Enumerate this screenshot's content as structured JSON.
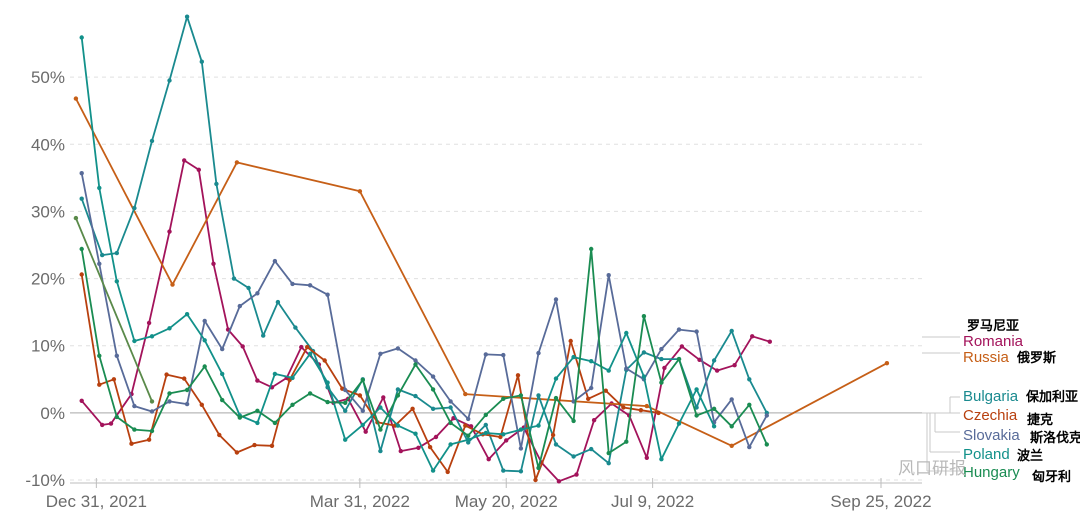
{
  "chart_data": {
    "type": "line",
    "title": "",
    "xlabel": "",
    "ylabel": "",
    "y_unit": "%",
    "ylim": [
      -10,
      60
    ],
    "xlim": [
      "2021-12-22",
      "2022-10-09"
    ],
    "y_ticks": [
      -10,
      0,
      10,
      20,
      30,
      40,
      50
    ],
    "y_tick_labels": [
      "-10%",
      "0%",
      "10%",
      "20%",
      "30%",
      "40%",
      "50%"
    ],
    "x_ticks": [
      "2021-12-31",
      "2022-03-31",
      "2022-05-20",
      "2022-07-09",
      "2022-09-25"
    ],
    "x_tick_labels": [
      "Dec 31, 2021",
      "Mar 31, 2022",
      "May 20, 2022",
      "Jul 9, 2022",
      "Sep 25, 2022"
    ],
    "grid": "horizontal dashed",
    "legend": "right, end-of-line labels",
    "series": [
      {
        "name": "Romania",
        "label_cn": "罗马尼亚",
        "color": "#a3135b",
        "x": [
          "2021-12-26",
          "2022-01-02",
          "2022-01-05",
          "2022-01-12",
          "2022-01-18",
          "2022-01-25",
          "2022-01-30",
          "2022-02-04",
          "2022-02-09",
          "2022-02-14",
          "2022-02-19",
          "2022-02-24",
          "2022-03-01",
          "2022-03-06",
          "2022-03-11",
          "2022-03-17",
          "2022-03-22",
          "2022-03-27",
          "2022-04-02",
          "2022-04-08",
          "2022-04-14",
          "2022-04-20",
          "2022-04-26",
          "2022-05-02",
          "2022-05-08",
          "2022-05-14",
          "2022-05-20",
          "2022-05-26",
          "2022-06-01",
          "2022-06-07",
          "2022-06-13",
          "2022-06-19",
          "2022-06-25",
          "2022-07-01",
          "2022-07-07",
          "2022-07-13",
          "2022-07-19",
          "2022-07-25",
          "2022-07-31",
          "2022-08-06",
          "2022-08-12",
          "2022-08-18",
          "2022-08-24",
          "2022-08-30",
          "2022-09-05",
          "2022-09-11",
          "2022-09-17"
        ],
        "y": [
          1.8,
          -1.8,
          -1.6,
          2.8,
          13.4,
          27.0,
          37.6,
          36.2,
          22.2,
          12.4,
          9.9,
          4.8,
          3.8,
          5.2,
          9.8,
          7.2,
          1.5,
          2.1,
          -2.8,
          2.3,
          -5.7,
          -5.2,
          -3.6,
          -0.8,
          -2.0,
          -6.9,
          -4.1,
          -2.2,
          -7.4,
          -10.2,
          -9.2,
          -1.1,
          1.4,
          -0.4,
          -6.7,
          6.7,
          9.9,
          7.9,
          6.3,
          7.1,
          11.4,
          10.6,
          null,
          null,
          null,
          null,
          null
        ]
      },
      {
        "name": "Russia",
        "label_cn": "俄罗斯",
        "color": "#c65f17",
        "x": [
          "2021-12-24",
          "2022-01-26",
          "2022-02-17",
          "2022-03-31",
          "2022-05-06",
          "2022-07-07",
          "2022-08-05",
          "2022-09-27"
        ],
        "y": [
          46.8,
          19.1,
          37.3,
          33.0,
          2.8,
          1.0,
          -4.9,
          7.4
        ]
      },
      {
        "name": "Bulgaria",
        "label_cn": "保加利亚",
        "color": "#1a8a8f",
        "x": [
          "2021-12-26",
          "2022-01-02",
          "2022-01-07",
          "2022-01-13",
          "2022-01-19",
          "2022-01-25",
          "2022-01-31",
          "2022-02-05",
          "2022-02-10",
          "2022-02-16",
          "2022-02-21",
          "2022-02-26",
          "2022-03-03",
          "2022-03-09",
          "2022-03-15",
          "2022-03-20",
          "2022-03-26",
          "2022-04-01",
          "2022-04-07",
          "2022-04-13",
          "2022-04-19",
          "2022-04-25",
          "2022-05-01",
          "2022-05-07",
          "2022-05-13",
          "2022-05-19",
          "2022-05-25",
          "2022-05-31",
          "2022-06-06",
          "2022-06-12",
          "2022-06-18",
          "2022-06-24",
          "2022-06-30",
          "2022-07-06",
          "2022-07-12",
          "2022-07-18",
          "2022-07-24",
          "2022-07-30",
          "2022-08-05",
          "2022-08-11",
          "2022-08-17",
          "2022-08-23",
          "2022-08-29",
          "2022-09-04",
          "2022-09-10",
          "2022-09-16",
          "2022-09-22"
        ],
        "y": [
          31.9,
          23.5,
          23.8,
          30.5,
          40.5,
          49.5,
          59.0,
          52.3,
          34.1,
          20.0,
          18.6,
          11.5,
          16.5,
          12.7,
          9.2,
          3.8,
          0.3,
          5.0,
          -5.7,
          3.5,
          2.5,
          0.6,
          0.8,
          -4.4,
          -1.8,
          -8.6,
          -8.7,
          2.6,
          -4.7,
          -6.5,
          -5.4,
          -7.5,
          6.4,
          9.0,
          8.0,
          8.0,
          0.8,
          7.8,
          12.2,
          5.0,
          0.0,
          null,
          null,
          null,
          null,
          null,
          null
        ]
      },
      {
        "name": "Czechia",
        "label_cn": "捷克",
        "color": "#b8400f",
        "x": [
          "2021-12-26",
          "2022-01-01",
          "2022-01-06",
          "2022-01-12",
          "2022-01-18",
          "2022-01-24",
          "2022-01-30",
          "2022-02-05",
          "2022-02-11",
          "2022-02-17",
          "2022-02-23",
          "2022-03-01",
          "2022-03-07",
          "2022-03-13",
          "2022-03-19",
          "2022-03-25",
          "2022-03-31",
          "2022-04-06",
          "2022-04-12",
          "2022-04-18",
          "2022-04-24",
          "2022-04-30",
          "2022-05-06",
          "2022-05-12",
          "2022-05-18",
          "2022-05-24",
          "2022-05-30",
          "2022-06-05",
          "2022-06-11",
          "2022-06-17",
          "2022-06-23",
          "2022-06-29",
          "2022-07-05",
          "2022-07-11",
          "2022-07-17",
          "2022-07-23",
          "2022-07-29",
          "2022-08-04",
          "2022-08-10",
          "2022-08-16",
          "2022-08-22"
        ],
        "y": [
          20.6,
          4.2,
          5.0,
          -4.6,
          -4.0,
          5.7,
          5.1,
          1.2,
          -3.3,
          -5.9,
          -4.8,
          -4.9,
          4.9,
          9.8,
          7.8,
          3.6,
          2.6,
          -1.4,
          -1.9,
          0.6,
          -5.1,
          -8.8,
          -1.9,
          -3.2,
          -3.6,
          5.6,
          -10.0,
          -3.3,
          10.7,
          2.1,
          3.3,
          0.8,
          0.4,
          0.0,
          null,
          null,
          null,
          null,
          null,
          null,
          null
        ]
      },
      {
        "name": "Slovakia",
        "label_cn": "斯洛伐克",
        "color": "#586b99",
        "x": [
          "2021-12-26",
          "2022-01-01",
          "2022-01-07",
          "2022-01-13",
          "2022-01-19",
          "2022-01-25",
          "2022-01-31",
          "2022-02-06",
          "2022-02-12",
          "2022-02-18",
          "2022-02-24",
          "2022-03-02",
          "2022-03-08",
          "2022-03-14",
          "2022-03-20",
          "2022-03-26",
          "2022-04-01",
          "2022-04-07",
          "2022-04-13",
          "2022-04-19",
          "2022-04-25",
          "2022-05-01",
          "2022-05-07",
          "2022-05-13",
          "2022-05-19",
          "2022-05-25",
          "2022-05-31",
          "2022-06-06",
          "2022-06-12",
          "2022-06-18",
          "2022-06-24",
          "2022-06-30",
          "2022-07-06",
          "2022-07-12",
          "2022-07-18",
          "2022-07-24",
          "2022-07-30",
          "2022-08-05",
          "2022-08-11",
          "2022-08-17",
          "2022-08-23",
          "2022-08-29",
          "2022-09-04",
          "2022-09-10",
          "2022-09-16",
          "2022-09-22",
          "2022-09-28"
        ],
        "y": [
          35.7,
          22.2,
          8.5,
          1.0,
          0.2,
          1.7,
          1.3,
          13.7,
          9.5,
          15.9,
          17.8,
          22.6,
          19.2,
          19.0,
          17.6,
          3.4,
          0.3,
          8.8,
          9.6,
          7.8,
          5.4,
          1.7,
          -0.9,
          8.7,
          8.6,
          -5.3,
          8.9,
          16.9,
          1.7,
          3.7,
          20.5,
          6.6,
          5.0,
          9.5,
          12.4,
          12.1,
          -1.4,
          2.0,
          -5.1,
          -0.4,
          null,
          null,
          null,
          null,
          null,
          null,
          null
        ]
      },
      {
        "name": "Poland",
        "label_cn": "波兰",
        "color": "#12918a",
        "x": [
          "2021-12-26",
          "2022-01-01",
          "2022-01-07",
          "2022-01-13",
          "2022-01-19",
          "2022-01-25",
          "2022-01-31",
          "2022-02-06",
          "2022-02-12",
          "2022-02-18",
          "2022-02-24",
          "2022-03-02",
          "2022-03-08",
          "2022-03-14",
          "2022-03-20",
          "2022-03-26",
          "2022-04-01",
          "2022-04-07",
          "2022-04-13",
          "2022-04-19",
          "2022-04-25",
          "2022-05-01",
          "2022-05-07",
          "2022-05-13",
          "2022-05-19",
          "2022-05-25",
          "2022-05-31",
          "2022-06-06",
          "2022-06-12",
          "2022-06-18",
          "2022-06-24",
          "2022-06-30",
          "2022-07-06",
          "2022-07-12",
          "2022-07-18",
          "2022-07-24",
          "2022-07-30",
          "2022-08-05",
          "2022-08-11",
          "2022-08-17",
          "2022-08-23",
          "2022-08-29",
          "2022-09-04",
          "2022-09-10",
          "2022-09-16",
          "2022-09-22",
          "2022-09-28"
        ],
        "y": [
          55.9,
          33.5,
          19.6,
          10.7,
          11.4,
          12.6,
          14.7,
          10.8,
          5.8,
          -0.4,
          -1.5,
          5.8,
          5.2,
          8.8,
          4.5,
          -4.0,
          -1.8,
          0.8,
          -1.9,
          -3.1,
          -8.6,
          -4.7,
          -4.0,
          -3.0,
          -3.2,
          -2.5,
          -1.9,
          5.1,
          8.3,
          7.7,
          6.3,
          11.9,
          5.4,
          -6.9,
          -1.6,
          3.5,
          -2.0,
          null,
          null,
          null,
          null,
          null,
          null,
          null,
          null,
          null,
          null
        ]
      },
      {
        "name": "Hungary",
        "label_cn": "匈牙利",
        "color": "#1a8c52",
        "x": [
          "2021-12-26",
          "2022-01-01",
          "2022-01-07",
          "2022-01-13",
          "2022-01-19",
          "2022-01-25",
          "2022-01-31",
          "2022-02-06",
          "2022-02-12",
          "2022-02-18",
          "2022-02-24",
          "2022-03-02",
          "2022-03-08",
          "2022-03-14",
          "2022-03-20",
          "2022-03-26",
          "2022-04-01",
          "2022-04-07",
          "2022-04-13",
          "2022-04-19",
          "2022-04-25",
          "2022-05-01",
          "2022-05-07",
          "2022-05-13",
          "2022-05-19",
          "2022-05-25",
          "2022-05-31",
          "2022-06-06",
          "2022-06-12",
          "2022-06-18",
          "2022-06-24",
          "2022-06-30",
          "2022-07-06",
          "2022-07-12",
          "2022-07-18",
          "2022-07-24",
          "2022-07-30",
          "2022-08-05",
          "2022-08-11",
          "2022-08-17",
          "2022-08-23",
          "2022-08-29",
          "2022-09-04",
          "2022-09-10",
          "2022-09-16",
          "2022-09-22",
          "2022-09-28"
        ],
        "y": [
          24.4,
          8.5,
          -0.6,
          -2.5,
          -2.7,
          2.9,
          3.4,
          6.9,
          1.9,
          -0.7,
          0.3,
          -1.5,
          1.2,
          2.9,
          1.6,
          1.5,
          4.9,
          -2.5,
          2.6,
          7.2,
          3.5,
          -1.5,
          -3.4,
          -0.3,
          2.1,
          2.6,
          -8.2,
          2.2,
          -1.2,
          24.4,
          -6.0,
          -4.3,
          14.4,
          4.5,
          8.0,
          -0.4,
          0.6,
          -2.0,
          1.2,
          -4.7,
          null,
          null,
          null,
          null,
          null,
          null,
          null
        ]
      },
      {
        "name": "",
        "color": "#5a8a4a",
        "x": [
          "2021-12-24",
          "2022-01-19"
        ],
        "y": [
          29.0,
          1.7
        ]
      }
    ]
  },
  "watermark": {
    "text": "风口研报"
  }
}
